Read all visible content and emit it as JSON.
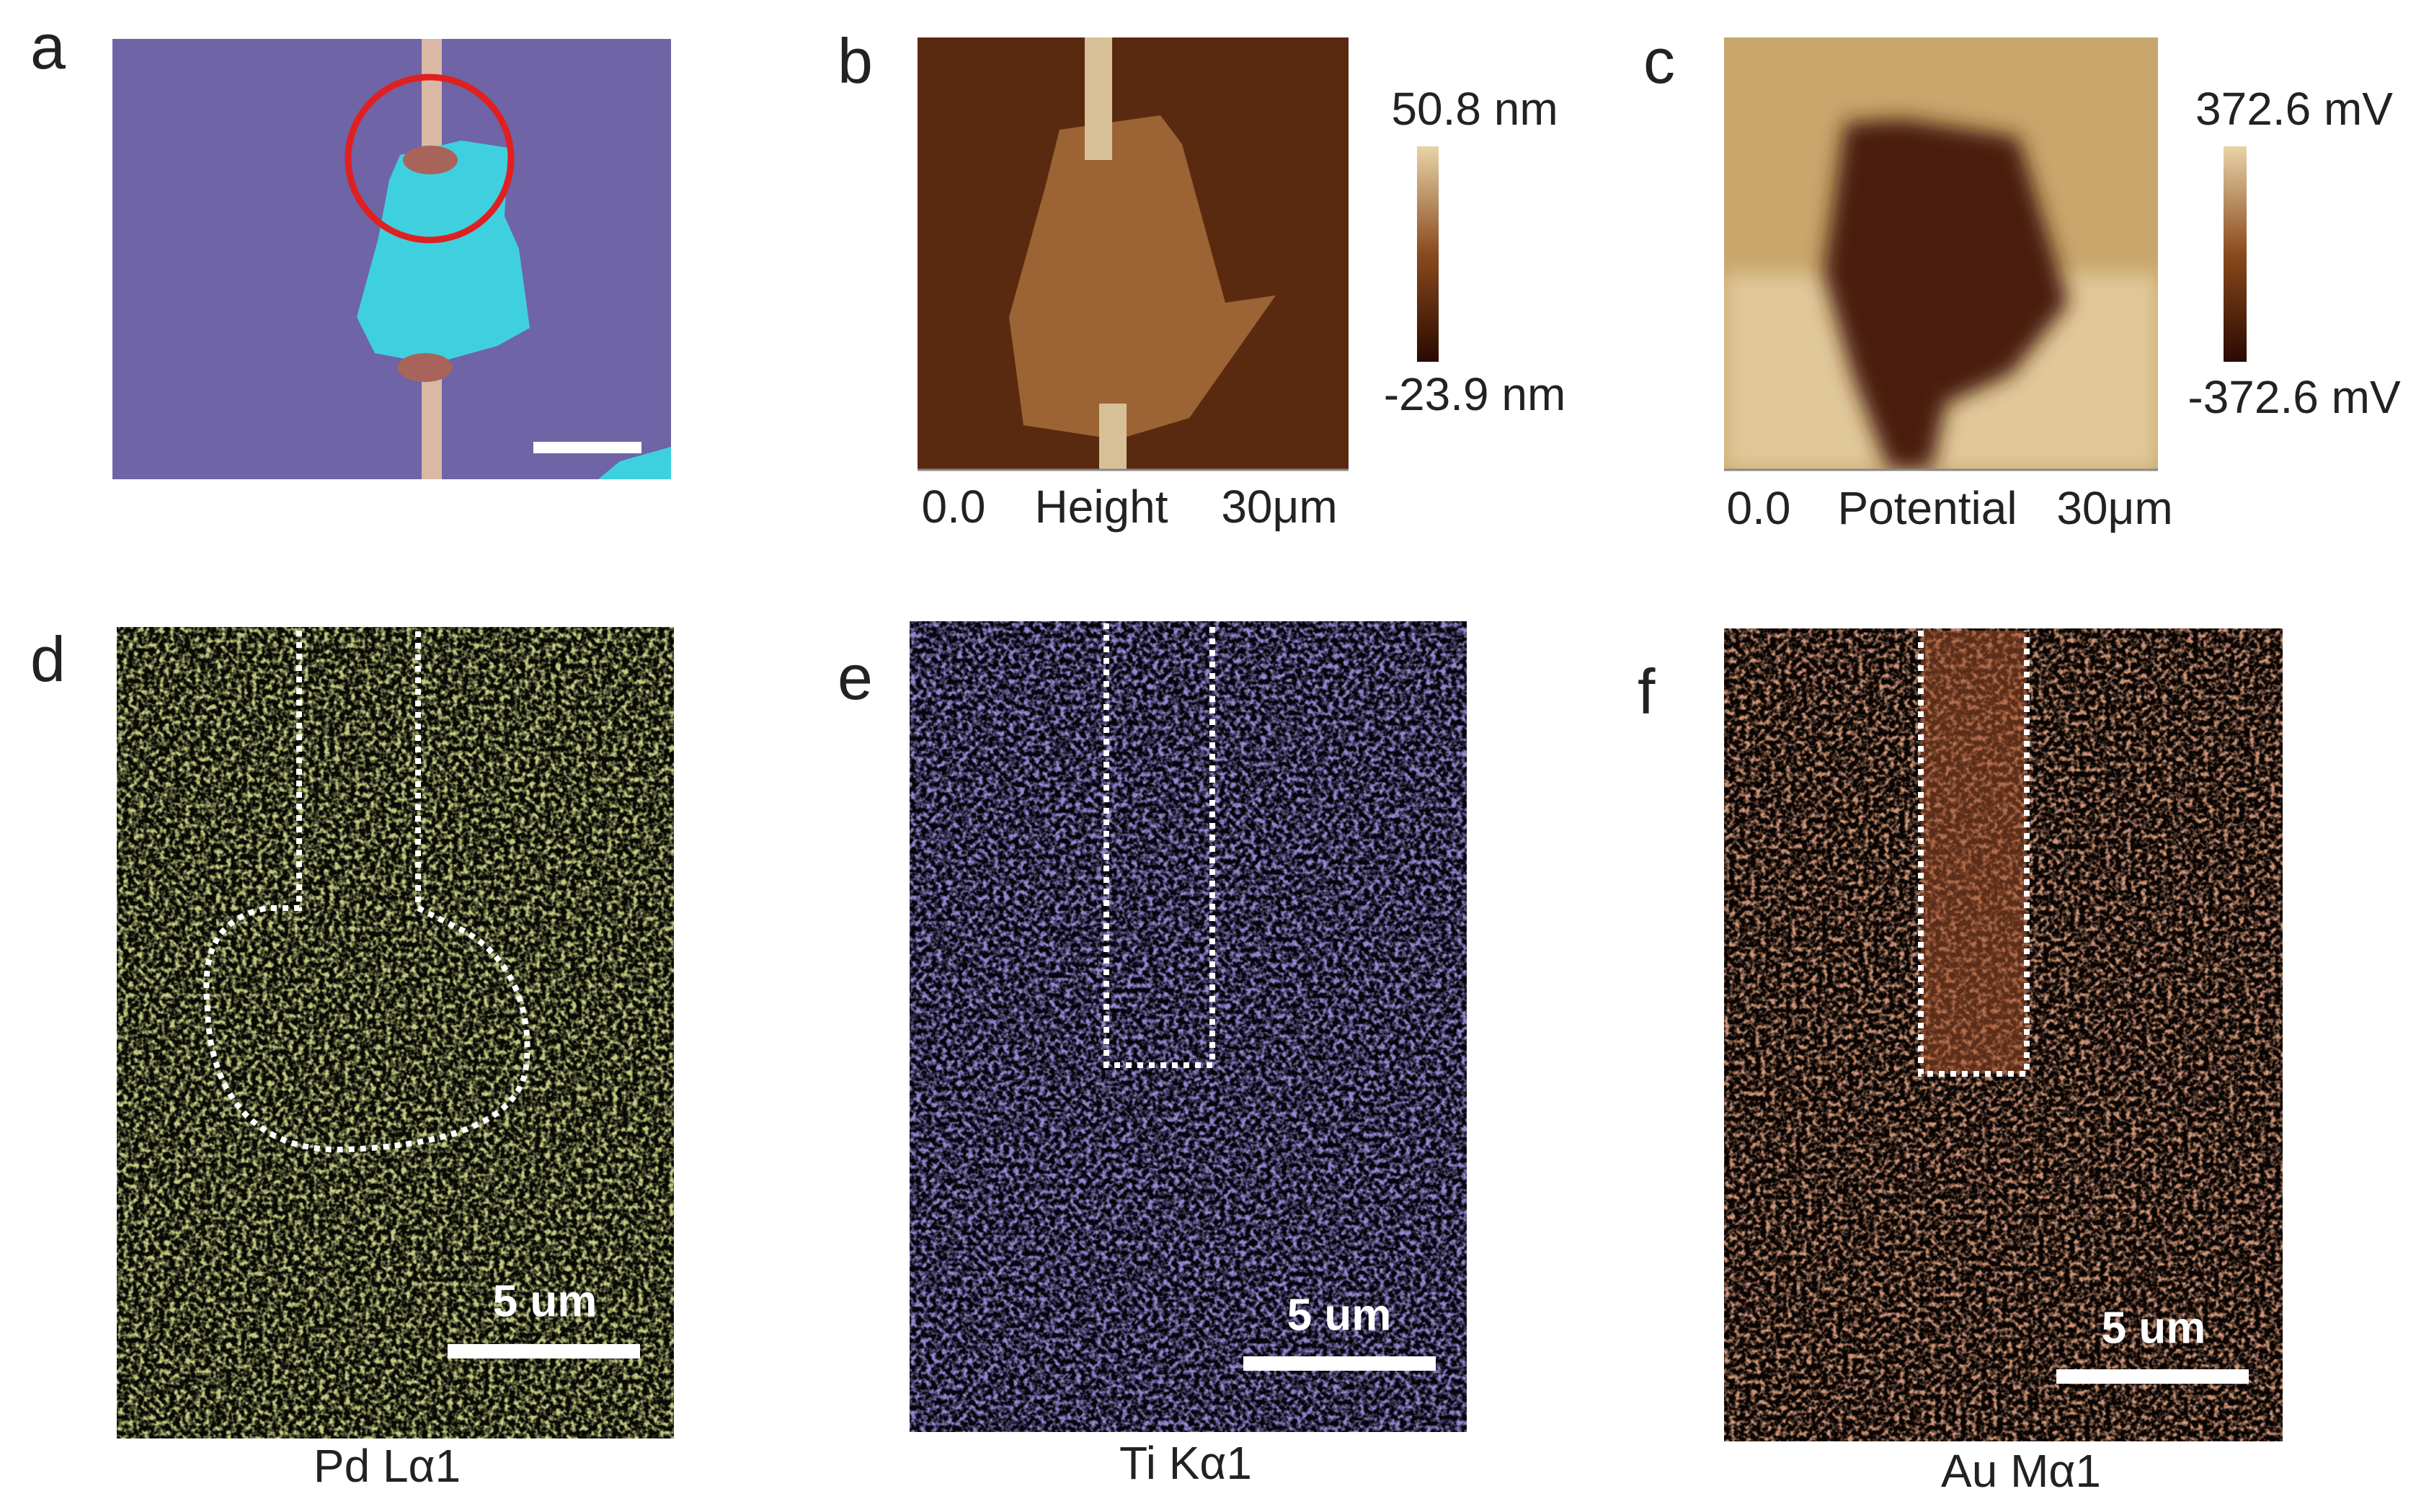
{
  "panels": [
    {
      "label": "a"
    },
    {
      "label": "b",
      "colorbar": {
        "max": "50.8 nm",
        "min": "-23.9 nm"
      },
      "axis": {
        "start": "0.0",
        "name": "Height",
        "end": "30μm"
      }
    },
    {
      "label": "c",
      "colorbar": {
        "max": "372.6 mV",
        "min": "-372.6 mV"
      },
      "axis": {
        "start": "0.0",
        "name": "Potential",
        "end": "30μm"
      }
    },
    {
      "label": "d",
      "scale_bar": "5 um",
      "caption": "Pd Lα1"
    },
    {
      "label": "e",
      "scale_bar": "5 um",
      "caption": "Ti Kα1"
    },
    {
      "label": "f",
      "scale_bar": "5 um",
      "caption": "Au Mα1"
    }
  ]
}
